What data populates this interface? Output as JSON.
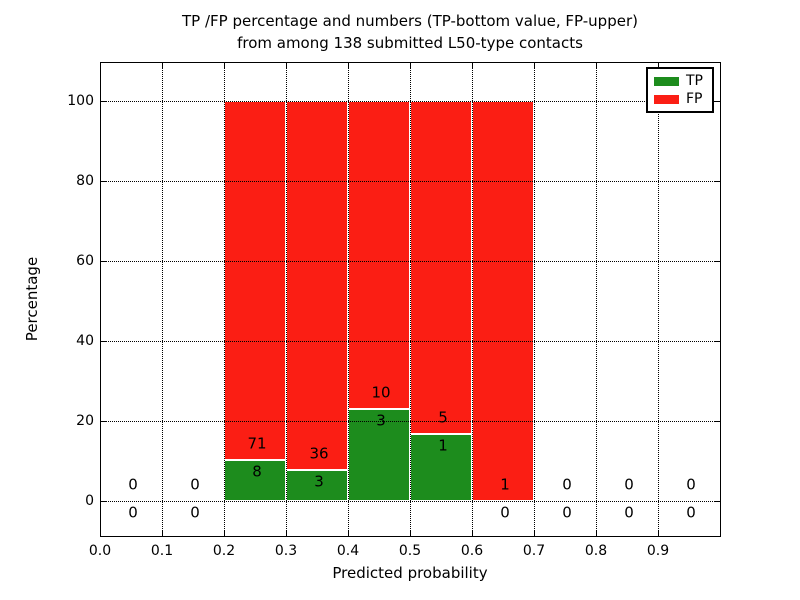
{
  "chart_data": {
    "type": "bar",
    "stacking": "percentage",
    "title_line1": "TP /FP percentage and numbers (TP-bottom value, FP-upper)",
    "title_line2": "from among 138 submitted L50-type contacts",
    "xlabel": "Predicted probability",
    "ylabel": "Percentage",
    "total_contacts": 138,
    "x_tick_labels": [
      "0.0",
      "0.1",
      "0.2",
      "0.3",
      "0.4",
      "0.5",
      "0.6",
      "0.7",
      "0.8",
      "0.9"
    ],
    "x_tick_values": [
      0.0,
      0.1,
      0.2,
      0.3,
      0.4,
      0.5,
      0.6,
      0.7,
      0.8,
      0.9
    ],
    "y_tick_labels": [
      "0",
      "20",
      "40",
      "60",
      "80",
      "100"
    ],
    "y_tick_values": [
      0,
      20,
      40,
      60,
      80,
      100
    ],
    "xlim": [
      0.0,
      1.0
    ],
    "ylim": [
      -9,
      110
    ],
    "grid": "dotted",
    "legend_position": "upper-right",
    "legend": [
      {
        "label": "TP",
        "color": "#1d8c1d"
      },
      {
        "label": "FP",
        "color": "#fb1e14"
      }
    ],
    "bins": [
      {
        "x0": 0.0,
        "x1": 0.1,
        "tp": 0,
        "fp": 0
      },
      {
        "x0": 0.1,
        "x1": 0.2,
        "tp": 0,
        "fp": 0
      },
      {
        "x0": 0.2,
        "x1": 0.3,
        "tp": 8,
        "fp": 71
      },
      {
        "x0": 0.3,
        "x1": 0.4,
        "tp": 3,
        "fp": 36
      },
      {
        "x0": 0.4,
        "x1": 0.5,
        "tp": 3,
        "fp": 10
      },
      {
        "x0": 0.5,
        "x1": 0.6,
        "tp": 1,
        "fp": 5
      },
      {
        "x0": 0.6,
        "x1": 0.7,
        "tp": 0,
        "fp": 1
      },
      {
        "x0": 0.7,
        "x1": 0.8,
        "tp": 0,
        "fp": 0
      },
      {
        "x0": 0.8,
        "x1": 0.9,
        "tp": 0,
        "fp": 0
      },
      {
        "x0": 0.9,
        "x1": 1.0,
        "tp": 0,
        "fp": 0
      }
    ],
    "colors": {
      "tp": "#1d8c1d",
      "fp": "#fb1e14",
      "bar_edge": "#ffffff",
      "grid": "#000000"
    }
  }
}
